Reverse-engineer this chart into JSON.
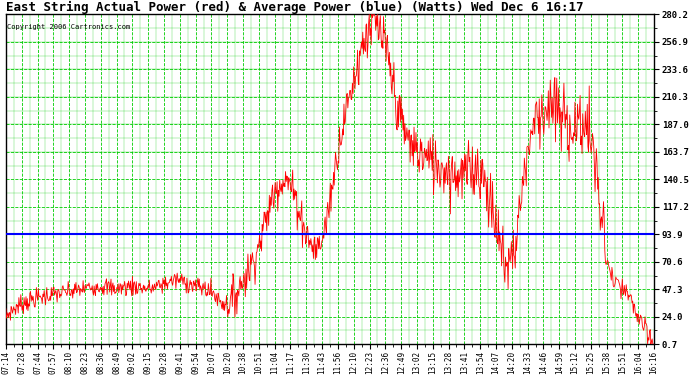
{
  "title": "East String Actual Power (red) & Average Power (blue) (Watts) Wed Dec 6 16:17",
  "copyright": "Copyright 2006 Cartronics.com",
  "yticks": [
    0.7,
    24.0,
    47.3,
    70.6,
    93.9,
    117.2,
    140.5,
    163.7,
    187.0,
    210.3,
    233.6,
    256.9,
    280.2
  ],
  "ylim": [
    0.7,
    280.2
  ],
  "average_power": 93.9,
  "avg_line_color": "blue",
  "actual_line_color": "red",
  "background_color": "white",
  "grid_color": "#00cc00",
  "x_labels": [
    "07:14",
    "07:28",
    "07:44",
    "07:57",
    "08:10",
    "08:23",
    "08:36",
    "08:49",
    "09:02",
    "09:15",
    "09:28",
    "09:41",
    "09:54",
    "10:07",
    "10:20",
    "10:38",
    "10:51",
    "11:04",
    "11:17",
    "11:30",
    "11:43",
    "11:56",
    "12:10",
    "12:23",
    "12:36",
    "12:49",
    "13:02",
    "13:15",
    "13:28",
    "13:41",
    "13:54",
    "14:07",
    "14:20",
    "14:33",
    "14:46",
    "14:59",
    "15:12",
    "15:25",
    "15:38",
    "15:51",
    "16:04",
    "16:16"
  ],
  "title_fontsize": 9,
  "ylabel_fontsize": 6.5,
  "xlabel_fontsize": 5.5,
  "figwidth": 6.9,
  "figheight": 3.75,
  "dpi": 100
}
